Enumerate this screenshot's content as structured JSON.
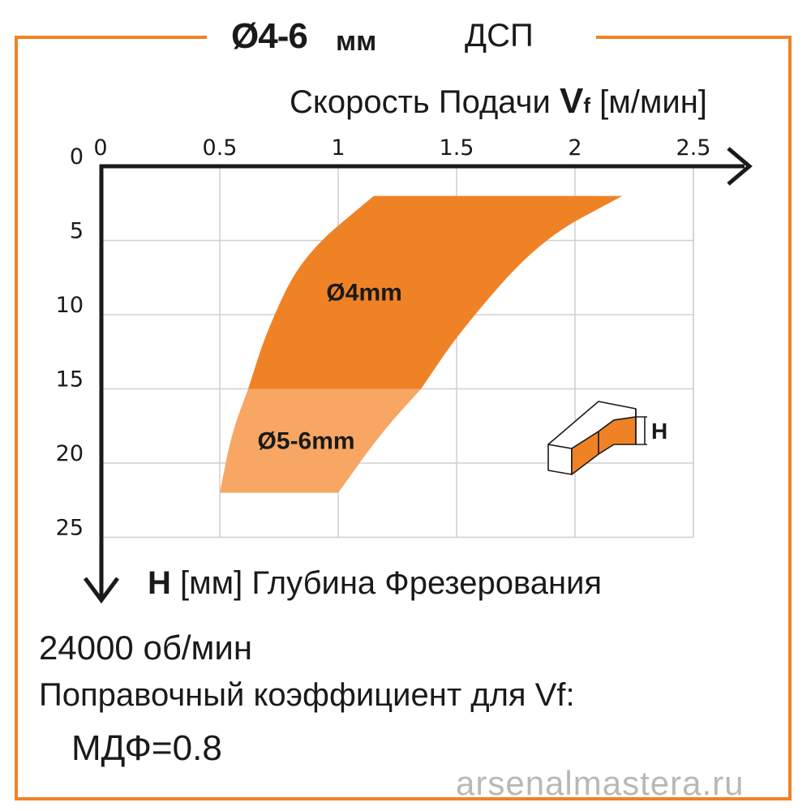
{
  "header": {
    "diameter": "Ø4-6",
    "unit": "мм",
    "material": "ДСП"
  },
  "chart_data": {
    "type": "area",
    "x_axis": {
      "symbol": "V",
      "subscript": "f",
      "label_prefix": "Скорость Подачи",
      "unit": "[м/мин]",
      "range": [
        0,
        2.5
      ],
      "ticks": [
        "0",
        "0.5",
        "1",
        "1.5",
        "2",
        "2.5"
      ]
    },
    "y_axis": {
      "symbol": "H",
      "unit": "[мм]",
      "label_suffix": "Глубина Фрезерования",
      "range": [
        0,
        25
      ],
      "inverted": true,
      "ticks": [
        "0",
        "5",
        "10",
        "15",
        "20",
        "25"
      ]
    },
    "grid": true,
    "series": [
      {
        "name": "Ø4mm",
        "color": "#f08226",
        "depth_range": [
          2,
          15
        ],
        "left_edge": [
          [
            1.15,
            2
          ],
          [
            0.85,
            6
          ],
          [
            0.7,
            11
          ],
          [
            0.62,
            15
          ]
        ],
        "right_edge": [
          [
            2.2,
            2
          ],
          [
            1.85,
            5
          ],
          [
            1.52,
            11
          ],
          [
            1.35,
            15
          ]
        ]
      },
      {
        "name": "Ø5-6mm",
        "color": "#f7a663",
        "depth_range": [
          15,
          22
        ],
        "left_edge": [
          [
            0.62,
            15
          ],
          [
            0.55,
            18
          ],
          [
            0.5,
            22
          ]
        ],
        "right_edge": [
          [
            1.35,
            15
          ],
          [
            1.18,
            18
          ],
          [
            1.0,
            22
          ]
        ]
      }
    ]
  },
  "inset": {
    "icon": "groove-depth-icon",
    "label": "H"
  },
  "footer": {
    "rpm": "24000 об/мин",
    "correction": "Поправочный коэффициент для Vf:",
    "mdf": "МДФ=0.8"
  },
  "watermark": "arsenalmastera.ru",
  "colors": {
    "frame": "#f08226",
    "axis": "#1a1a1a",
    "grid": "#cfcfcf"
  }
}
